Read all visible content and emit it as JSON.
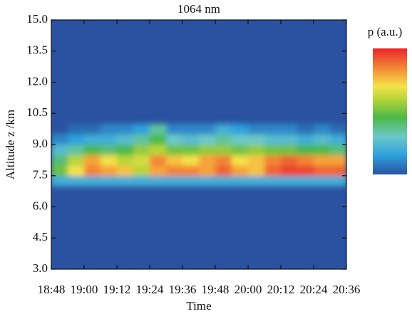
{
  "chart_data": {
    "type": "heatmap",
    "title": "1064 nm",
    "xlabel": "Time",
    "ylabel": "Altitude z /km",
    "colorbar_label": "p (a.u.)",
    "xlim": [
      1128,
      1236
    ],
    "xticks": [
      {
        "value": 1128,
        "label": "18:48"
      },
      {
        "value": 1140,
        "label": "19:00"
      },
      {
        "value": 1152,
        "label": "19:12"
      },
      {
        "value": 1164,
        "label": "19:24"
      },
      {
        "value": 1176,
        "label": "19:36"
      },
      {
        "value": 1188,
        "label": "19:48"
      },
      {
        "value": 1200,
        "label": "20:00"
      },
      {
        "value": 1212,
        "label": "20:12"
      },
      {
        "value": 1224,
        "label": "20:24"
      },
      {
        "value": 1236,
        "label": "20:36"
      }
    ],
    "ylim": [
      3,
      15
    ],
    "yticks": [
      {
        "value": 3,
        "label": "3.0"
      },
      {
        "value": 4.5,
        "label": "4.5"
      },
      {
        "value": 6,
        "label": "6.0"
      },
      {
        "value": 7.5,
        "label": "7.5"
      },
      {
        "value": 9,
        "label": "9.0"
      },
      {
        "value": 10.5,
        "label": "10.5"
      },
      {
        "value": 12,
        "label": "12.0"
      },
      {
        "value": 13.5,
        "label": "13.5"
      },
      {
        "value": 15,
        "label": "15.0"
      }
    ],
    "x": [
      1131,
      1137,
      1143,
      1149,
      1155,
      1161,
      1167,
      1173,
      1179,
      1185,
      1191,
      1197,
      1203,
      1209,
      1215,
      1221,
      1227,
      1233
    ],
    "y": [
      7.25,
      7.75,
      8.25,
      8.75,
      9.25,
      9.75
    ],
    "x_step": 6,
    "y_step": 0.5,
    "zlim": [
      0,
      1
    ],
    "z": [
      [
        0.2,
        0.2,
        0.2,
        0.2,
        0.2,
        0.2,
        0.2,
        0.2,
        0.2,
        0.2,
        0.2,
        0.2,
        0.2,
        0.2,
        0.2,
        0.2,
        0.2,
        0.2
      ],
      [
        0.5,
        0.7,
        0.85,
        0.8,
        0.75,
        0.6,
        0.8,
        0.85,
        0.85,
        0.8,
        0.9,
        0.8,
        0.75,
        0.9,
        0.95,
        0.95,
        0.9,
        0.9
      ],
      [
        0.4,
        0.6,
        0.8,
        0.7,
        0.6,
        0.65,
        0.85,
        0.75,
        0.7,
        0.8,
        0.85,
        0.7,
        0.75,
        0.85,
        0.9,
        0.85,
        0.8,
        0.8
      ],
      [
        0.25,
        0.35,
        0.45,
        0.4,
        0.45,
        0.55,
        0.6,
        0.5,
        0.5,
        0.55,
        0.55,
        0.5,
        0.55,
        0.5,
        0.5,
        0.45,
        0.45,
        0.4
      ],
      [
        0.1,
        0.15,
        0.2,
        0.2,
        0.25,
        0.35,
        0.45,
        0.3,
        0.25,
        0.3,
        0.35,
        0.3,
        0.3,
        0.25,
        0.25,
        0.2,
        0.25,
        0.2
      ],
      [
        0,
        0.05,
        0.05,
        0.1,
        0.1,
        0.15,
        0.35,
        0.1,
        0.1,
        0.1,
        0.2,
        0.15,
        0.1,
        0.1,
        0.1,
        0.05,
        0.1,
        0.05
      ]
    ],
    "colormap": [
      {
        "value": 0,
        "color": "#2a52a0"
      },
      {
        "value": 0.15,
        "color": "#2fa0dd"
      },
      {
        "value": 0.3,
        "color": "#6cc8c8"
      },
      {
        "value": 0.45,
        "color": "#4cb848"
      },
      {
        "value": 0.6,
        "color": "#b8d53a"
      },
      {
        "value": 0.7,
        "color": "#f5e24a"
      },
      {
        "value": 0.8,
        "color": "#f6a33a"
      },
      {
        "value": 1,
        "color": "#e8262a"
      }
    ]
  }
}
